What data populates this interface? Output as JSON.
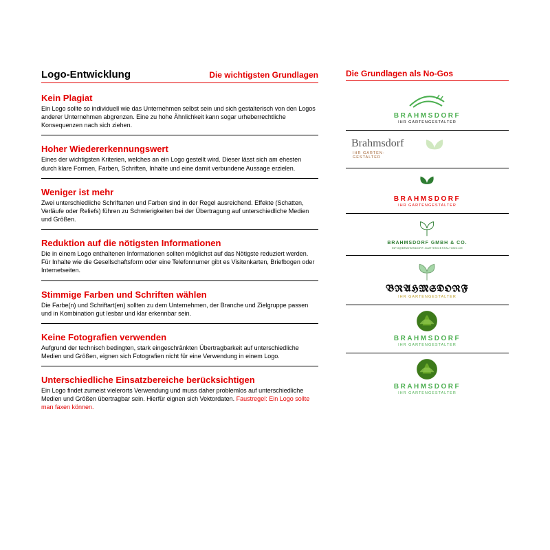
{
  "colors": {
    "accent": "#e30000",
    "text": "#000000",
    "green_dark": "#2e7d32",
    "green_mid": "#4caf50",
    "green_light": "#a5d6a7",
    "green_pale": "#d0e8c0",
    "brown": "#a06030",
    "gold": "#bfa030",
    "black": "#000000"
  },
  "left": {
    "title": "Logo-Entwicklung",
    "subtitle": "Die wichtigsten Grundlagen",
    "sections": [
      {
        "heading": "Kein Plagiat",
        "body": "Ein Logo sollte so individuell wie das Unternehmen selbst sein und sich gestalterisch von den Logos anderer Unternehmen abgrenzen. Eine zu hohe Ähnlichkeit kann sogar urheberrechtliche Konsequenzen nach sich ziehen."
      },
      {
        "heading": "Hoher Wiedererkennungswert",
        "body": "Eines der wichtigsten Kriterien, welches an ein Logo gestellt wird. Dieser lässt sich am ehesten durch klare Formen, Farben, Schriften, Inhalte und eine damit verbundene Aussage erzielen."
      },
      {
        "heading": "Weniger ist mehr",
        "body": "Zwei unterschiedliche Schriftarten und Farben sind in der Regel ausreichend. Effekte (Schatten, Verläufe oder Reliefs) führen zu Schwierigkeiten bei der Übertragung auf unterschiedliche Medien und Größen."
      },
      {
        "heading": "Reduktion auf die nötigsten Informationen",
        "body": "Die in einem Logo enthaltenen Informationen sollten möglichst auf das Nötigste reduziert werden. Für Inhalte wie die Gesellschaftsform oder eine Telefonnumer gibt es Visitenkarten, Briefbogen oder Internetseiten."
      },
      {
        "heading": "Stimmige Farben und Schriften wählen",
        "body": "Die Farbe(n) und Schriftart(en) sollten zu dem Unternehmen, der Branche und Zielgruppe passen und in Kombination gut lesbar und klar erkennbar sein."
      },
      {
        "heading": "Keine Fotografien verwenden",
        "body": "Aufgrund der technisch bedingten, stark eingeschränkten Übertragbarkeit auf unterschiedliche Medien und Größen, eignen sich Fotografien nicht für eine Verwendung in einem Logo."
      },
      {
        "heading": "Unterschiedliche Einsatzbereiche berücksichtigen",
        "body": "Ein Logo findet zumeist vielerorts Verwendung und muss daher problemlos auf unterschiedliche Medien und Größen übertragbar sein. Hierfür eignen sich Vektordaten.",
        "tail_red": " Faustregel: Ein Logo sollte man faxen können."
      }
    ]
  },
  "right": {
    "title": "Die Grundlagen als No-Gos",
    "logos": [
      {
        "style": "swoosh",
        "name": "BRAHMSDORF",
        "tag": "IHR GARTENGESTALTER",
        "name_color": "#4caf50",
        "tag_color": "#000000",
        "icon_color": "#4caf50"
      },
      {
        "style": "script",
        "name": "Brahmsdorf",
        "tag": "IHR GARTEN-\nGESTALTER",
        "name_color": "#555555",
        "tag_color": "#a06030",
        "icon_color": "#d0e8c0"
      },
      {
        "style": "leaf-solid",
        "name": "BRAHMSDORF",
        "tag": "IHR GARTENGESTALTER",
        "name_color": "#e30000",
        "tag_color": "#e30000",
        "icon_color": "#2e7d32"
      },
      {
        "style": "leaf-outline",
        "name": "BRAHMSDORF GMBH & CO.",
        "tag": "INFO@BRAHMSDORF-GARTENGESTALTUNG.DE",
        "name_color": "#2e7d32",
        "tag_color": "#2e7d32",
        "icon_color": "#2e7d32"
      },
      {
        "style": "leaf-pale",
        "name": "BRAHMSDORF",
        "tag": "IHR GARTENGESTALTER",
        "name_color": "#000000",
        "tag_color": "#bfa030",
        "icon_color": "#a5d6a7",
        "blackletter": true
      },
      {
        "style": "leaf-photo",
        "name": "BRAHMSDORF",
        "tag": "IHR GARTENGESTALTER",
        "name_color": "#4caf50",
        "tag_color": "#4caf50",
        "icon_color": "#3d7a1a"
      },
      {
        "style": "leaf-photo",
        "name": "BRAHMSDORF",
        "tag": "IHR GARTENGESTALTER",
        "name_color": "#4caf50",
        "tag_color": "#4caf50",
        "icon_color": "#3d7a1a"
      }
    ]
  }
}
